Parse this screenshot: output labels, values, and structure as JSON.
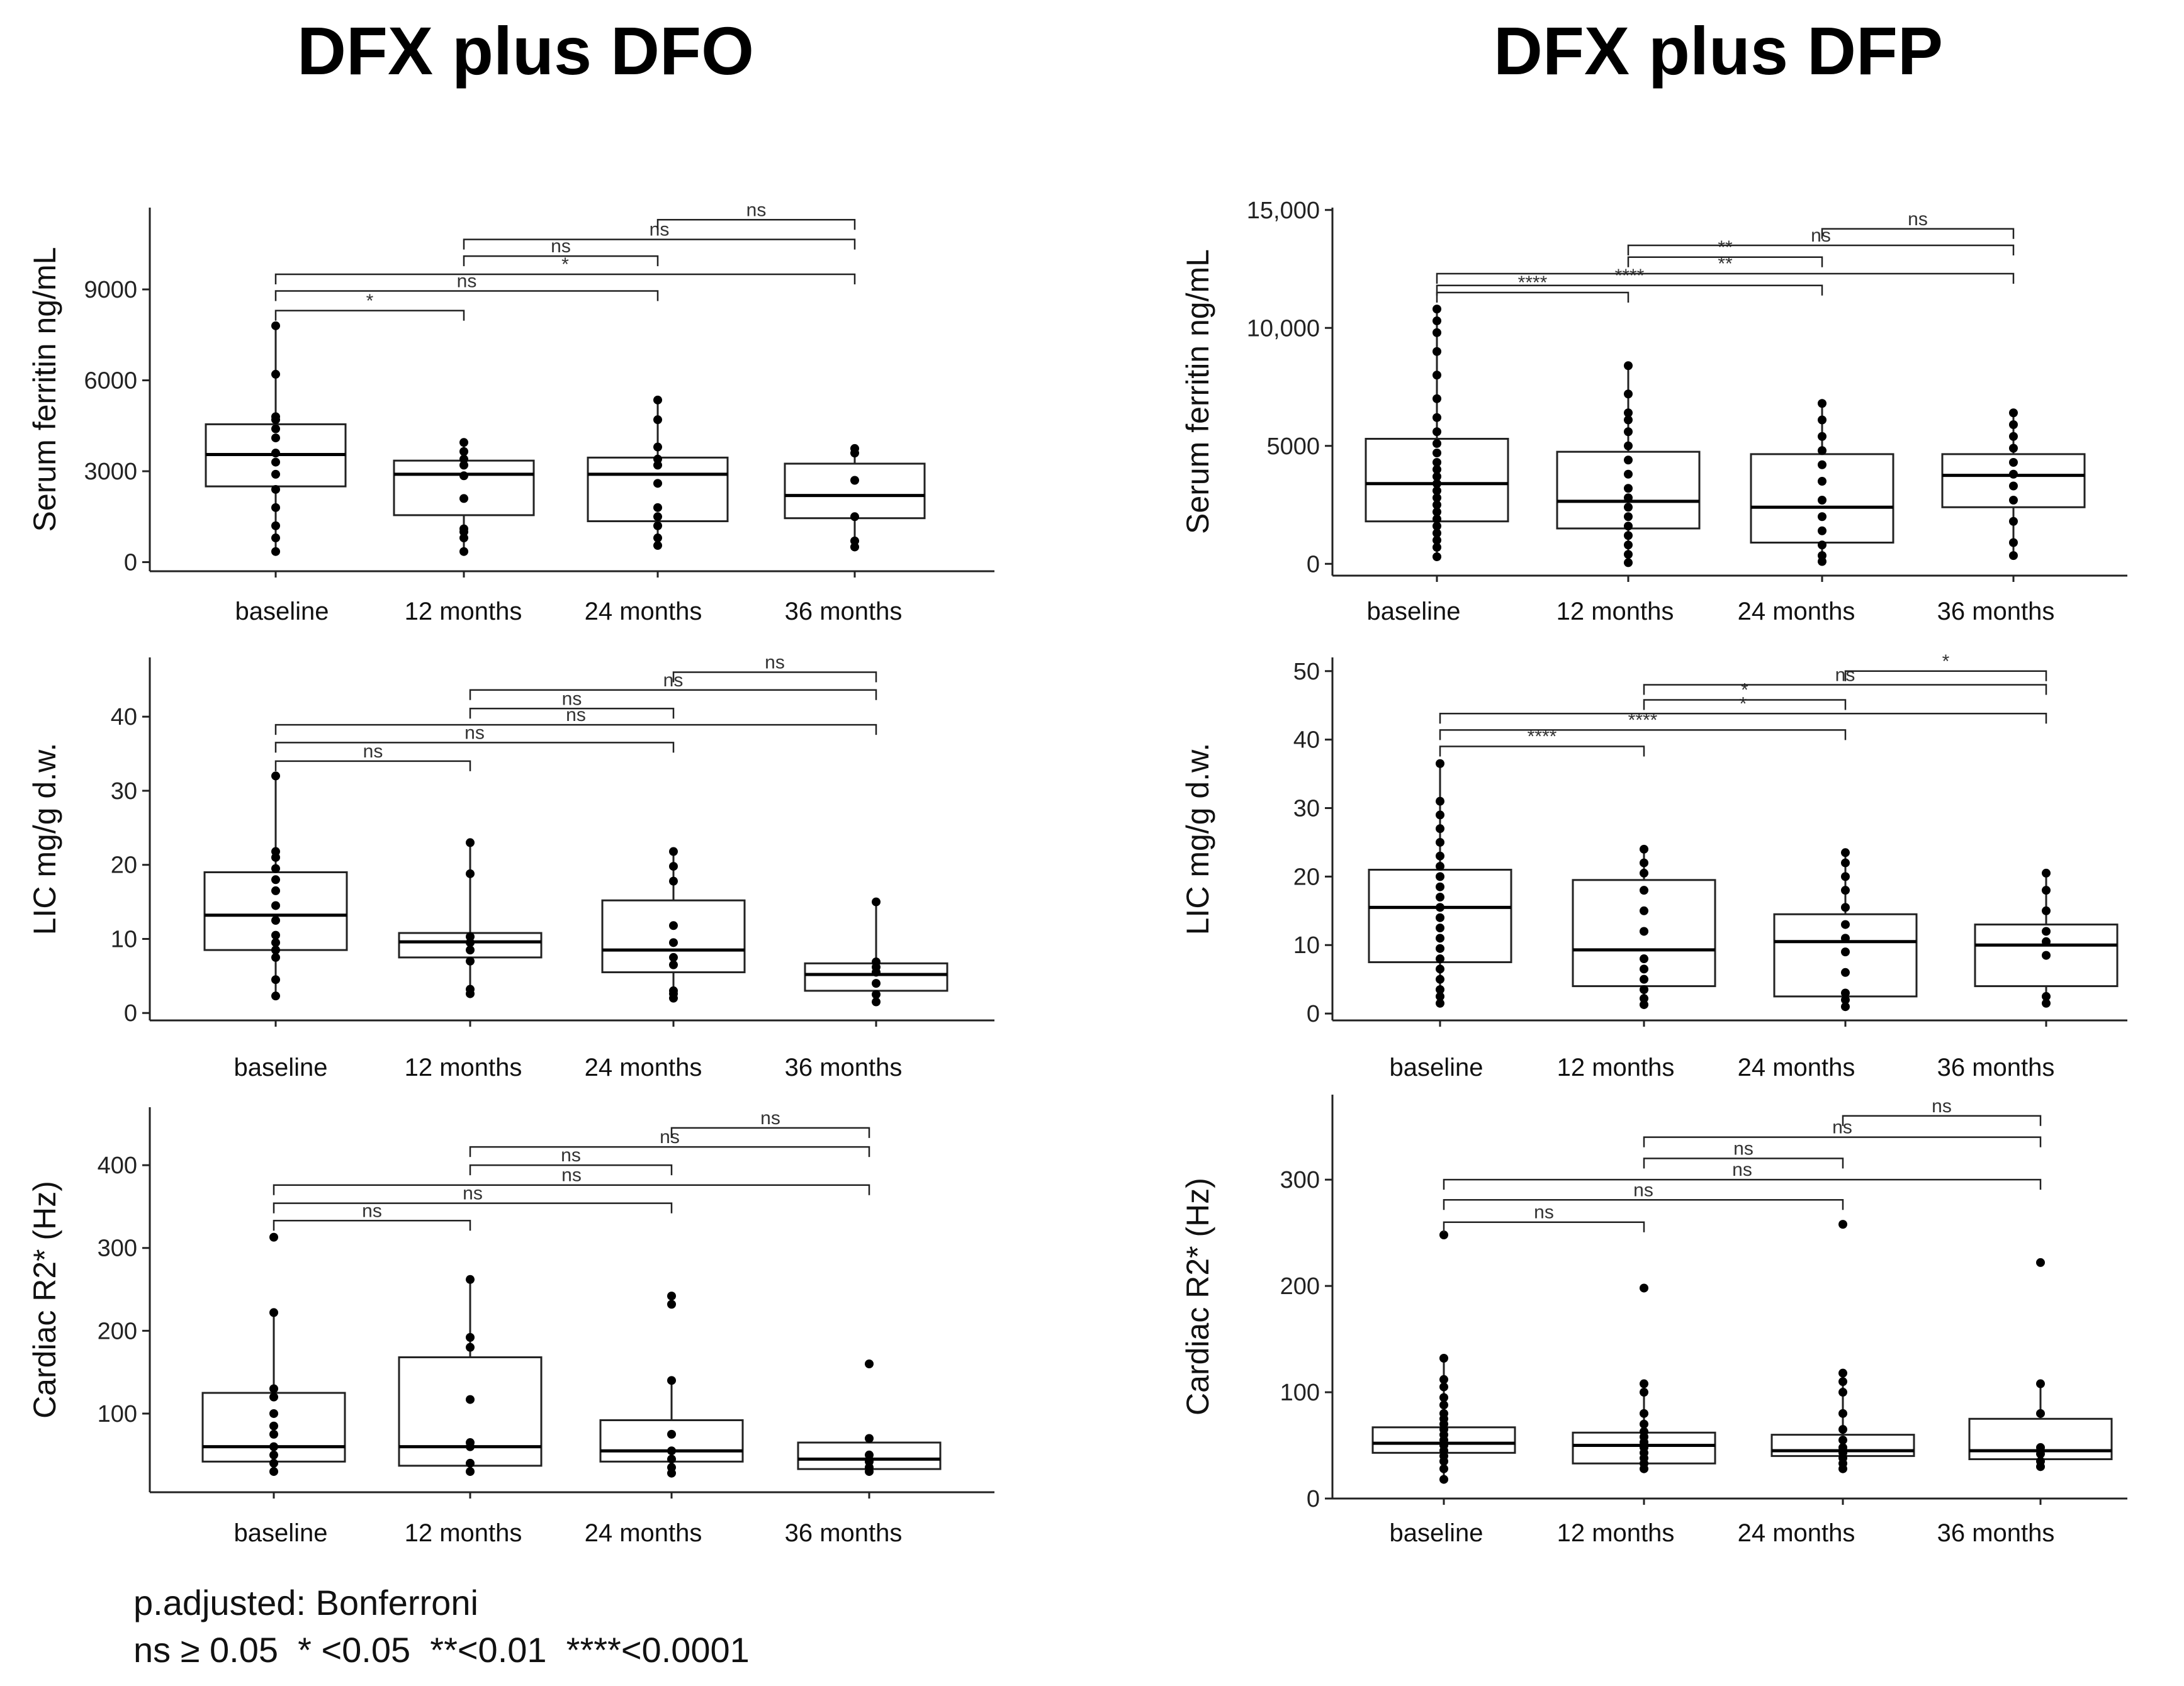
{
  "columns": [
    {
      "title": "DFX plus DFO"
    },
    {
      "title": "DFX plus DFP"
    }
  ],
  "footnote": {
    "line1": "p.adjusted: Bonferroni",
    "line2": "ns ≥ 0.05  * <0.05  **<0.01  ****<0.0001"
  },
  "chart_data": [
    {
      "type": "box",
      "title": "DFX plus DFO",
      "ylabel": "Serum ferritin ng/mL",
      "categories": [
        "baseline",
        "12 months",
        "24 months",
        "36 months"
      ],
      "ylim": [
        -300,
        11700
      ],
      "yticks": [
        0,
        3000,
        6000,
        9000
      ],
      "yticklabels": [
        "0",
        "3000",
        "6000",
        "9000"
      ],
      "boxes": [
        {
          "q1": 2500,
          "median": 3550,
          "q3": 4550,
          "wlo": 350,
          "whi": 7800
        },
        {
          "q1": 1550,
          "median": 2900,
          "q3": 3350,
          "wlo": 350,
          "whi": 3950
        },
        {
          "q1": 1350,
          "median": 2900,
          "q3": 3450,
          "wlo": 550,
          "whi": 5350
        },
        {
          "q1": 1450,
          "median": 2200,
          "q3": 3250,
          "wlo": 500,
          "whi": 3750
        }
      ],
      "points": [
        [
          350,
          800,
          1200,
          1800,
          2400,
          2900,
          3300,
          3600,
          4100,
          4400,
          4700,
          4800,
          6200,
          7800
        ],
        [
          350,
          800,
          1000,
          1100,
          2100,
          2850,
          3200,
          3400,
          3650,
          3950
        ],
        [
          550,
          800,
          1200,
          1500,
          1800,
          2600,
          3200,
          3400,
          3800,
          4700,
          5350
        ],
        [
          500,
          700,
          1500,
          2700,
          3600,
          3750
        ]
      ],
      "comparisons": [
        {
          "from": 0,
          "to": 1,
          "label": "*",
          "level": 8300
        },
        {
          "from": 0,
          "to": 2,
          "label": "ns",
          "level": 8950
        },
        {
          "from": 0,
          "to": 3,
          "label": "*",
          "level": 9500
        },
        {
          "from": 1,
          "to": 2,
          "label": "ns",
          "level": 10100
        },
        {
          "from": 1,
          "to": 3,
          "label": "ns",
          "level": 10650
        },
        {
          "from": 2,
          "to": 3,
          "label": "ns",
          "level": 11300
        }
      ]
    },
    {
      "type": "box",
      "title": "DFX plus DFO",
      "ylabel": "LIC mg/g d.w.",
      "categories": [
        "baseline",
        "12 months",
        "24 months",
        "36 months"
      ],
      "ylim": [
        -1,
        48
      ],
      "yticks": [
        0,
        10,
        20,
        30,
        40
      ],
      "yticklabels": [
        "0",
        "10",
        "20",
        "30",
        "40"
      ],
      "boxes": [
        {
          "q1": 8.5,
          "median": 13.2,
          "q3": 19.0,
          "wlo": 2.3,
          "whi": 32.0
        },
        {
          "q1": 7.5,
          "median": 9.6,
          "q3": 10.8,
          "wlo": 2.6,
          "whi": 23.0
        },
        {
          "q1": 5.5,
          "median": 8.5,
          "q3": 15.2,
          "wlo": 2.0,
          "whi": 21.8
        },
        {
          "q1": 3.0,
          "median": 5.2,
          "q3": 6.7,
          "wlo": 1.5,
          "whi": 15.0
        }
      ],
      "points": [
        [
          2.3,
          4.5,
          7.5,
          8.5,
          9.5,
          10.5,
          12.5,
          14.5,
          16.5,
          18.0,
          19.5,
          21.0,
          21.8,
          32.0
        ],
        [
          2.6,
          3.2,
          7.0,
          8.5,
          9.5,
          10.3,
          18.8,
          23.0
        ],
        [
          2.0,
          2.6,
          3.0,
          6.5,
          7.5,
          9.5,
          11.8,
          17.8,
          19.8,
          21.8
        ],
        [
          1.5,
          2.5,
          4.0,
          5.5,
          6.2,
          6.9,
          15.0
        ]
      ],
      "comparisons": [
        {
          "from": 0,
          "to": 1,
          "label": "ns",
          "level": 34.0
        },
        {
          "from": 0,
          "to": 2,
          "label": "ns",
          "level": 36.5
        },
        {
          "from": 0,
          "to": 3,
          "label": "ns",
          "level": 38.9
        },
        {
          "from": 1,
          "to": 2,
          "label": "ns",
          "level": 41.1
        },
        {
          "from": 1,
          "to": 3,
          "label": "ns",
          "level": 43.6
        },
        {
          "from": 2,
          "to": 3,
          "label": "ns",
          "level": 46.0
        }
      ]
    },
    {
      "type": "box",
      "title": "DFX plus DFO",
      "ylabel": "Cardiac R2* (Hz)",
      "categories": [
        "baseline",
        "12 months",
        "24 months",
        "36 months"
      ],
      "ylim": [
        5,
        470
      ],
      "yticks": [
        100,
        200,
        300,
        400
      ],
      "yticklabels": [
        "100",
        "200",
        "300",
        "400"
      ],
      "boxes": [
        {
          "q1": 42,
          "median": 60,
          "q3": 125,
          "wlo": 30,
          "whi": 222
        },
        {
          "q1": 37,
          "median": 60,
          "q3": 168,
          "wlo": 30,
          "whi": 262
        },
        {
          "q1": 42,
          "median": 55,
          "q3": 92,
          "wlo": 28,
          "whi": 140
        },
        {
          "q1": 33,
          "median": 45,
          "q3": 65,
          "wlo": 30,
          "whi": 70
        }
      ],
      "points": [
        [
          30,
          40,
          50,
          60,
          75,
          85,
          100,
          120,
          130,
          222,
          313
        ],
        [
          30,
          40,
          60,
          65,
          117,
          180,
          192,
          262
        ],
        [
          28,
          35,
          45,
          55,
          75,
          140,
          232,
          242
        ],
        [
          30,
          35,
          42,
          50,
          70,
          160
        ]
      ],
      "comparisons": [
        {
          "from": 0,
          "to": 1,
          "label": "ns",
          "level": 333
        },
        {
          "from": 0,
          "to": 2,
          "label": "ns",
          "level": 354
        },
        {
          "from": 0,
          "to": 3,
          "label": "ns",
          "level": 376
        },
        {
          "from": 1,
          "to": 2,
          "label": "ns",
          "level": 400
        },
        {
          "from": 1,
          "to": 3,
          "label": "ns",
          "level": 422
        },
        {
          "from": 2,
          "to": 3,
          "label": "ns",
          "level": 445
        }
      ]
    },
    {
      "type": "box",
      "title": "DFX plus DFP",
      "ylabel": "Serum ferritin ng/mL",
      "categories": [
        "baseline",
        "12 months",
        "24 months",
        "36 months"
      ],
      "ylim": [
        -500,
        15100
      ],
      "yticks": [
        0,
        5000,
        10000,
        15000
      ],
      "yticklabels": [
        "0",
        "5000",
        "10,000",
        "15,000"
      ],
      "boxes": [
        {
          "q1": 1800,
          "median": 3400,
          "q3": 5300,
          "wlo": 300,
          "whi": 10800
        },
        {
          "q1": 1500,
          "median": 2650,
          "q3": 4750,
          "wlo": 50,
          "whi": 8400
        },
        {
          "q1": 900,
          "median": 2400,
          "q3": 4650,
          "wlo": 100,
          "whi": 6800
        },
        {
          "q1": 2400,
          "median": 3750,
          "q3": 4650,
          "wlo": 350,
          "whi": 6400
        }
      ],
      "points": [
        [
          300,
          700,
          1000,
          1300,
          1600,
          1900,
          2200,
          2500,
          2800,
          3100,
          3400,
          3700,
          4000,
          4300,
          4700,
          5100,
          5600,
          6200,
          7000,
          8000,
          9000,
          9800,
          10300,
          10800
        ],
        [
          50,
          400,
          800,
          1200,
          1600,
          2000,
          2400,
          2800,
          3200,
          3800,
          4400,
          5000,
          5600,
          6100,
          6400,
          7200,
          8400
        ],
        [
          100,
          350,
          800,
          1400,
          2000,
          2700,
          3500,
          4200,
          4800,
          5400,
          6100,
          6800
        ],
        [
          350,
          900,
          1800,
          2700,
          3300,
          3800,
          4300,
          4900,
          5400,
          5900,
          6400
        ]
      ],
      "comparisons": [
        {
          "from": 0,
          "to": 1,
          "label": "****",
          "level": 11500
        },
        {
          "from": 0,
          "to": 2,
          "label": "****",
          "level": 11800
        },
        {
          "from": 0,
          "to": 3,
          "label": "**",
          "level": 12300
        },
        {
          "from": 1,
          "to": 2,
          "label": "**",
          "level": 13000
        },
        {
          "from": 1,
          "to": 3,
          "label": "ns",
          "level": 13500
        },
        {
          "from": 2,
          "to": 3,
          "label": "ns",
          "level": 14200
        }
      ]
    },
    {
      "type": "box",
      "title": "DFX plus DFP",
      "ylabel": "LIC mg/g d.w.",
      "categories": [
        "baseline",
        "12 months",
        "24 months",
        "36 months"
      ],
      "ylim": [
        -1,
        52
      ],
      "yticks": [
        0,
        10,
        20,
        30,
        40,
        50
      ],
      "yticklabels": [
        "0",
        "10",
        "20",
        "30",
        "40",
        "50"
      ],
      "boxes": [
        {
          "q1": 7.5,
          "median": 15.5,
          "q3": 21.0,
          "wlo": 1.5,
          "whi": 36.5
        },
        {
          "q1": 4.0,
          "median": 9.3,
          "q3": 19.5,
          "wlo": 1.3,
          "whi": 24.0
        },
        {
          "q1": 2.5,
          "median": 10.5,
          "q3": 14.5,
          "wlo": 1.0,
          "whi": 23.5
        },
        {
          "q1": 4.0,
          "median": 10.0,
          "q3": 13.0,
          "wlo": 1.5,
          "whi": 20.5
        }
      ],
      "points": [
        [
          1.5,
          2.5,
          3.5,
          5.0,
          6.5,
          8.0,
          9.5,
          11.0,
          12.5,
          14.0,
          15.5,
          17.0,
          18.5,
          20.0,
          21.5,
          23.0,
          25.0,
          27.0,
          29.0,
          31.0,
          36.5
        ],
        [
          1.3,
          2.2,
          3.5,
          5.0,
          6.5,
          8.0,
          12.0,
          15.0,
          18.0,
          20.5,
          22.0,
          24.0
        ],
        [
          1.0,
          2.0,
          3.0,
          6.0,
          9.0,
          11.0,
          13.0,
          15.5,
          18.0,
          20.0,
          22.0,
          23.5
        ],
        [
          1.5,
          2.5,
          8.5,
          10.5,
          12.0,
          15.0,
          18.0,
          20.5
        ]
      ],
      "comparisons": [
        {
          "from": 0,
          "to": 1,
          "label": "****",
          "level": 39.0
        },
        {
          "from": 0,
          "to": 2,
          "label": "****",
          "level": 41.4
        },
        {
          "from": 0,
          "to": 3,
          "label": "*",
          "level": 43.8
        },
        {
          "from": 1,
          "to": 2,
          "label": "*",
          "level": 45.8
        },
        {
          "from": 1,
          "to": 3,
          "label": "ns",
          "level": 48.0
        },
        {
          "from": 2,
          "to": 3,
          "label": "*",
          "level": 50.0
        }
      ]
    },
    {
      "type": "box",
      "title": "DFX plus DFP",
      "ylabel": "Cardiac R2* (Hz)",
      "categories": [
        "baseline",
        "12 months",
        "24 months",
        "36 months"
      ],
      "ylim": [
        0,
        380
      ],
      "yticks": [
        0,
        100,
        200,
        300
      ],
      "yticklabels": [
        "0",
        "100",
        "200",
        "300"
      ],
      "boxes": [
        {
          "q1": 43,
          "median": 52,
          "q3": 67,
          "wlo": 18,
          "whi": 132
        },
        {
          "q1": 33,
          "median": 50,
          "q3": 62,
          "wlo": 28,
          "whi": 108
        },
        {
          "q1": 40,
          "median": 45,
          "q3": 60,
          "wlo": 28,
          "whi": 118
        },
        {
          "q1": 37,
          "median": 45,
          "q3": 75,
          "wlo": 30,
          "whi": 108
        }
      ],
      "points": [
        [
          18,
          28,
          35,
          40,
          45,
          50,
          55,
          60,
          65,
          70,
          75,
          80,
          88,
          95,
          105,
          112,
          132,
          248
        ],
        [
          28,
          33,
          38,
          43,
          48,
          53,
          58,
          63,
          70,
          80,
          100,
          108,
          198
        ],
        [
          28,
          33,
          38,
          43,
          48,
          55,
          65,
          80,
          100,
          110,
          118,
          258
        ],
        [
          30,
          35,
          42,
          48,
          80,
          108,
          222
        ]
      ],
      "comparisons": [
        {
          "from": 0,
          "to": 1,
          "label": "ns",
          "level": 260
        },
        {
          "from": 0,
          "to": 2,
          "label": "ns",
          "level": 281
        },
        {
          "from": 0,
          "to": 3,
          "label": "ns",
          "level": 300
        },
        {
          "from": 1,
          "to": 2,
          "label": "ns",
          "level": 320
        },
        {
          "from": 1,
          "to": 3,
          "label": "ns",
          "level": 340
        },
        {
          "from": 2,
          "to": 3,
          "label": "ns",
          "level": 360
        }
      ]
    }
  ]
}
